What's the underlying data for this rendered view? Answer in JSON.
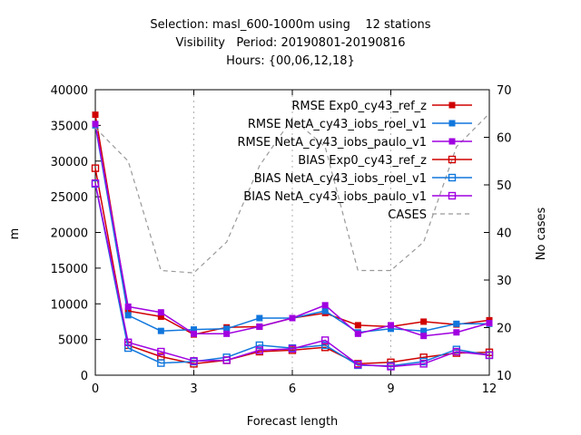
{
  "chart_data": {
    "type": "line",
    "title": [
      "Selection: masl_600-1000m using    12 stations",
      "Visibility   Period: 20190801-20190816",
      "Hours: {00,06,12,18}"
    ],
    "xlabel": "Forecast length",
    "ylabel": "m",
    "y2label": "No cases",
    "xlim": [
      0,
      12
    ],
    "ylim": [
      0,
      40000
    ],
    "y2lim": [
      10,
      70
    ],
    "xticks": [
      0,
      3,
      6,
      9,
      12
    ],
    "yticks": [
      0,
      5000,
      10000,
      15000,
      20000,
      25000,
      30000,
      35000,
      40000
    ],
    "y2ticks": [
      10,
      20,
      30,
      40,
      50,
      60,
      70
    ],
    "legend_position": "top-right",
    "x": [
      0,
      1,
      2,
      3,
      4,
      5,
      6,
      7,
      8,
      9,
      10,
      11,
      12
    ],
    "series": [
      {
        "name": "RMSE Exp0_cy43_ref_z",
        "color": "#d00000",
        "marker": "filled-square",
        "axis": "y",
        "values": [
          36500,
          9000,
          8200,
          5700,
          6700,
          6800,
          8000,
          8700,
          7000,
          6800,
          7500,
          7100,
          7700
        ]
      },
      {
        "name": "RMSE NetA_cy43_iobs_roel_v1",
        "color": "#1177dd",
        "marker": "filled-square",
        "axis": "y",
        "values": [
          35000,
          8400,
          6200,
          6400,
          6500,
          8000,
          8000,
          9000,
          6000,
          6500,
          6200,
          7200,
          7200
        ]
      },
      {
        "name": "RMSE NetA_cy43_iobs_paulo_v1",
        "color": "#a000e0",
        "marker": "filled-square",
        "axis": "y",
        "values": [
          35200,
          9600,
          8800,
          5800,
          5800,
          6800,
          8000,
          9800,
          5800,
          7000,
          5500,
          6000,
          7300
        ]
      },
      {
        "name": "BIAS Exp0_cy43_ref_z",
        "color": "#d00000",
        "marker": "open-square",
        "axis": "y",
        "values": [
          29000,
          4200,
          2600,
          1600,
          2100,
          3300,
          3500,
          3900,
          1600,
          1800,
          2500,
          3100,
          3200
        ]
      },
      {
        "name": "BIAS NetA_cy43_iobs_roel_v1",
        "color": "#1177dd",
        "marker": "open-square",
        "axis": "y",
        "values": [
          26800,
          3800,
          1700,
          1900,
          2500,
          4200,
          3800,
          4200,
          1400,
          1300,
          1900,
          3600,
          2800
        ]
      },
      {
        "name": "BIAS NetA_cy43_iobs_paulo_v1",
        "color": "#a000e0",
        "marker": "open-square",
        "axis": "y",
        "values": [
          26900,
          4600,
          3300,
          2000,
          2100,
          3500,
          3700,
          4900,
          1500,
          1200,
          1600,
          3300,
          2800
        ]
      },
      {
        "name": "CASES",
        "color": "#999999",
        "marker": "dashed",
        "axis": "y2",
        "values": [
          62,
          55,
          32,
          31.5,
          38,
          54,
          64,
          58,
          32,
          32,
          38,
          58,
          65
        ]
      }
    ]
  }
}
